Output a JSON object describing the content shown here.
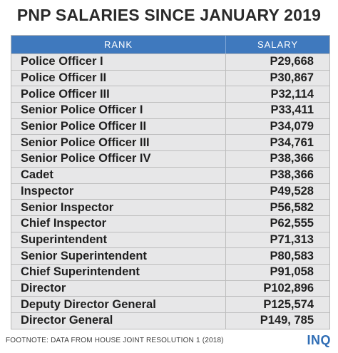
{
  "title": "PNP SALARIES SINCE JANUARY 2019",
  "chart_data": {
    "type": "table",
    "title": "PNP SALARIES SINCE JANUARY 2019",
    "columns": [
      "RANK",
      "SALARY"
    ],
    "rows": [
      {
        "rank": "Police Officer I",
        "salary": "P29,668"
      },
      {
        "rank": "Police Officer II",
        "salary": "P30,867"
      },
      {
        "rank": "Police Officer III",
        "salary": "P32,114"
      },
      {
        "rank": "Senior Police Officer I",
        "salary": "P33,411"
      },
      {
        "rank": "Senior Police Officer II",
        "salary": "P34,079"
      },
      {
        "rank": "Senior Police Officer III",
        "salary": "P34,761"
      },
      {
        "rank": "Senior Police Officer IV",
        "salary": "P38,366"
      },
      {
        "rank": "Cadet",
        "salary": "P38,366"
      },
      {
        "rank": "Inspector",
        "salary": "P49,528"
      },
      {
        "rank": "Senior Inspector",
        "salary": "P56,582"
      },
      {
        "rank": "Chief Inspector",
        "salary": "P62,555"
      },
      {
        "rank": "Superintendent",
        "salary": "P71,313"
      },
      {
        "rank": "Senior Superintendent",
        "salary": "P80,583"
      },
      {
        "rank": "Chief Superintendent",
        "salary": "P91,058"
      },
      {
        "rank": "Director",
        "salary": "P102,896"
      },
      {
        "rank": "Deputy Director General",
        "salary": "P125,574"
      },
      {
        "rank": "Director General",
        "salary": "P149, 785"
      }
    ]
  },
  "footnote": "FOOTNOTE: DATA FROM HOUSE JOINT RESOLUTION 1 (2018)",
  "logo": "INQ",
  "colors": {
    "header_bg": "#3f79be",
    "row_bg": "#e7e7e8",
    "logo": "#2f6db5"
  }
}
